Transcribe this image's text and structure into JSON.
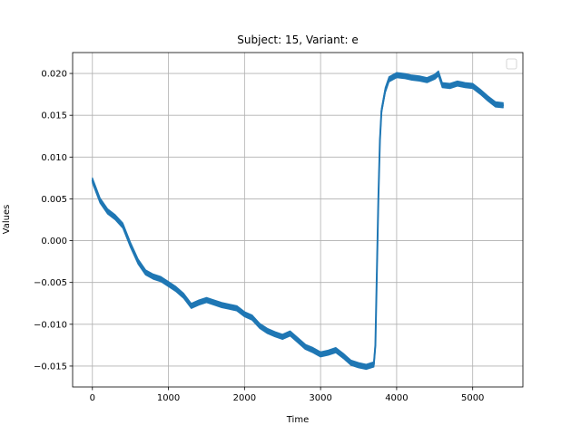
{
  "chart_data": {
    "type": "line",
    "title": "Subject: 15, Variant: e",
    "xlabel": "Time",
    "ylabel": "Values",
    "xlim": [
      -260,
      5660
    ],
    "ylim": [
      -0.0175,
      0.0225
    ],
    "xticks": [
      0,
      1000,
      2000,
      3000,
      4000,
      5000
    ],
    "xtick_labels": [
      "0",
      "1000",
      "2000",
      "3000",
      "4000",
      "5000"
    ],
    "yticks": [
      -0.015,
      -0.01,
      -0.005,
      0.0,
      0.005,
      0.01,
      0.015,
      0.02
    ],
    "ytick_labels": [
      "−0.015",
      "−0.010",
      "−0.005",
      "0.000",
      "0.005",
      "0.010",
      "0.015",
      "0.020"
    ],
    "grid": true,
    "legend": {
      "placement": "top-right",
      "entries": []
    },
    "series": [
      {
        "color": "#1f77b4",
        "noise_band": 0.0006,
        "x": [
          0,
          50,
          100,
          200,
          300,
          400,
          500,
          600,
          700,
          800,
          900,
          1000,
          1100,
          1200,
          1300,
          1400,
          1500,
          1600,
          1700,
          1800,
          1900,
          2000,
          2100,
          2200,
          2300,
          2400,
          2500,
          2600,
          2700,
          2800,
          2900,
          3000,
          3100,
          3200,
          3300,
          3400,
          3500,
          3600,
          3700,
          3720,
          3740,
          3760,
          3780,
          3800,
          3850,
          3900,
          4000,
          4100,
          4200,
          4300,
          4400,
          4500,
          4550,
          4600,
          4700,
          4800,
          4900,
          5000,
          5100,
          5200,
          5300,
          5400
        ],
        "y": [
          0.0072,
          0.006,
          0.0048,
          0.0035,
          0.0028,
          0.0018,
          -0.0005,
          -0.0025,
          -0.0038,
          -0.0043,
          -0.0046,
          -0.0052,
          -0.0058,
          -0.0066,
          -0.0078,
          -0.0074,
          -0.0071,
          -0.0074,
          -0.0077,
          -0.0079,
          -0.0081,
          -0.0088,
          -0.0092,
          -0.0102,
          -0.0108,
          -0.0112,
          -0.0115,
          -0.0111,
          -0.0119,
          -0.0127,
          -0.0131,
          -0.0136,
          -0.0134,
          -0.0131,
          -0.0138,
          -0.0146,
          -0.0149,
          -0.0151,
          -0.0148,
          -0.0125,
          -0.004,
          0.005,
          0.012,
          0.0155,
          0.018,
          0.0193,
          0.0198,
          0.0197,
          0.0195,
          0.0194,
          0.0192,
          0.0196,
          0.02,
          0.0186,
          0.0185,
          0.0188,
          0.0186,
          0.0185,
          0.0178,
          0.017,
          0.0163,
          0.0162
        ]
      }
    ]
  }
}
